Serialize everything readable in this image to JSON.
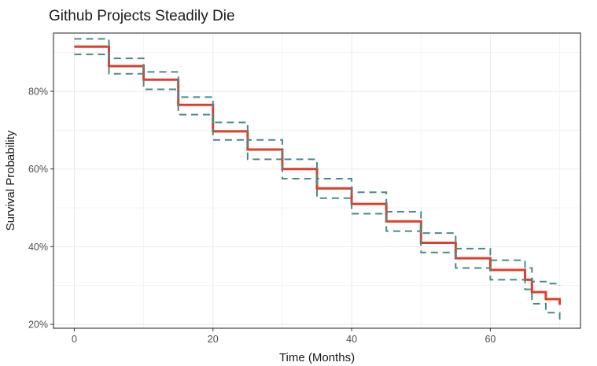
{
  "chart_data": {
    "type": "line",
    "title": "Github Projects Steadily Die",
    "xlabel": "Time (Months)",
    "ylabel": "Survival Probability",
    "xlim": [
      -3,
      73
    ],
    "ylim": [
      0.19,
      0.95
    ],
    "x_ticks": [
      0,
      20,
      40,
      60
    ],
    "x_tick_labels": [
      "0",
      "20",
      "40",
      "60"
    ],
    "y_ticks": [
      0.2,
      0.4,
      0.6,
      0.8
    ],
    "y_tick_labels": [
      "20%",
      "40%",
      "60%",
      "80%"
    ],
    "grid": true,
    "legend": "none",
    "colors": {
      "estimate": "#d9412b",
      "ci": "#4a8a8a",
      "grid": "#ebebeb",
      "panel_border": "#333333"
    },
    "series": [
      {
        "role": "estimate",
        "step": true,
        "x": [
          0,
          5,
          10,
          15,
          20,
          25,
          30,
          35,
          40,
          45,
          50,
          55,
          60,
          65,
          66,
          68,
          70
        ],
        "y": [
          0.915,
          0.865,
          0.83,
          0.765,
          0.697,
          0.65,
          0.6,
          0.55,
          0.51,
          0.465,
          0.41,
          0.37,
          0.34,
          0.315,
          0.283,
          0.265,
          0.25
        ]
      },
      {
        "role": "ci-upper",
        "step": true,
        "dashed": true,
        "x": [
          0,
          5,
          10,
          15,
          20,
          25,
          30,
          35,
          40,
          45,
          50,
          55,
          60,
          65,
          66,
          68,
          70
        ],
        "y": [
          0.935,
          0.885,
          0.85,
          0.785,
          0.72,
          0.675,
          0.625,
          0.575,
          0.54,
          0.49,
          0.435,
          0.395,
          0.365,
          0.345,
          0.31,
          0.305,
          0.3
        ]
      },
      {
        "role": "ci-lower",
        "step": true,
        "dashed": true,
        "x": [
          0,
          5,
          10,
          15,
          20,
          25,
          30,
          35,
          40,
          45,
          50,
          55,
          60,
          65,
          66,
          68,
          70
        ],
        "y": [
          0.895,
          0.845,
          0.805,
          0.74,
          0.675,
          0.625,
          0.575,
          0.525,
          0.485,
          0.44,
          0.385,
          0.345,
          0.315,
          0.29,
          0.253,
          0.23,
          0.205
        ]
      }
    ]
  }
}
